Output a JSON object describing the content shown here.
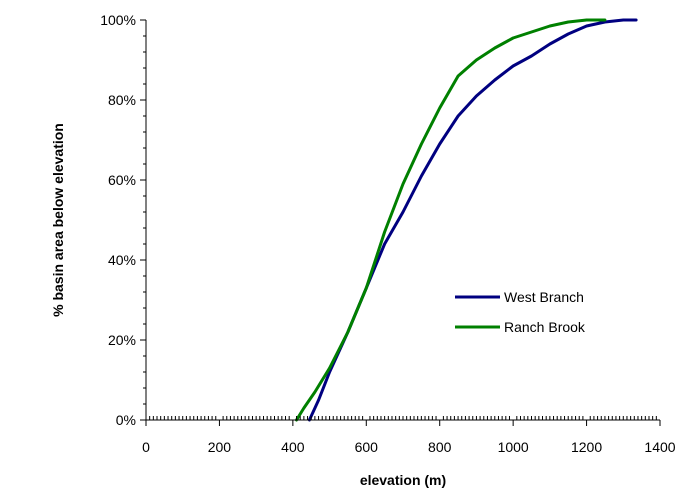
{
  "chart_data": {
    "type": "line",
    "title": "",
    "xlabel": "elevation (m)",
    "ylabel": "% basin area below elevation",
    "xlim": [
      0,
      1400
    ],
    "ylim": [
      0,
      100
    ],
    "x_ticks": [
      0,
      200,
      400,
      600,
      800,
      1000,
      1200,
      1400
    ],
    "x_tick_labels": [
      "0",
      "200",
      "400",
      "600",
      "800",
      "1000",
      "1200",
      "1400"
    ],
    "y_ticks": [
      0,
      20,
      40,
      60,
      80,
      100
    ],
    "y_tick_labels": [
      "0%",
      "20%",
      "40%",
      "60%",
      "80%",
      "100%"
    ],
    "grid": false,
    "legend_position": "center-right",
    "series": [
      {
        "name": "West Branch",
        "color": "#000080",
        "x": [
          445,
          455,
          470,
          500,
          550,
          600,
          650,
          700,
          750,
          800,
          850,
          900,
          950,
          1000,
          1050,
          1100,
          1150,
          1200,
          1250,
          1300,
          1335
        ],
        "y": [
          0,
          2,
          5,
          12,
          22,
          33,
          44,
          52,
          61,
          69,
          76,
          81,
          85,
          88.5,
          91,
          94,
          96.5,
          98.5,
          99.5,
          100,
          100
        ]
      },
      {
        "name": "Ranch Brook",
        "color": "#008000",
        "x": [
          410,
          430,
          460,
          500,
          550,
          600,
          650,
          700,
          750,
          800,
          850,
          900,
          950,
          1000,
          1050,
          1100,
          1150,
          1200,
          1250
        ],
        "y": [
          0,
          3,
          7,
          13,
          22,
          33,
          47,
          59,
          69,
          78,
          86,
          90,
          93,
          95.5,
          97,
          98.5,
          99.5,
          100,
          100
        ]
      }
    ]
  }
}
